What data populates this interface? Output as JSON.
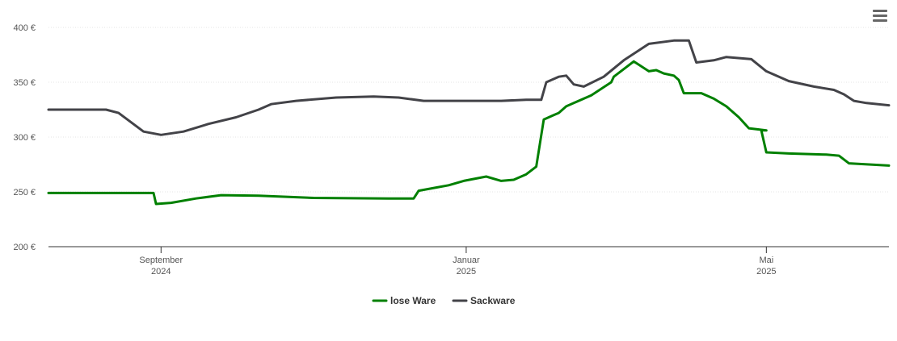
{
  "menu": {
    "icon": "hamburger-menu-icon"
  },
  "chart_data": {
    "type": "line",
    "title": "",
    "xlabel": "",
    "ylabel": "",
    "ylim": [
      200,
      400
    ],
    "yticks": [
      {
        "value": 200,
        "label": "200 €"
      },
      {
        "value": 250,
        "label": "250 €"
      },
      {
        "value": 300,
        "label": "300 €"
      },
      {
        "value": 350,
        "label": "350 €"
      },
      {
        "value": 400,
        "label": "400 €"
      }
    ],
    "xlim": [
      "2024-07-18",
      "2025-06-19"
    ],
    "xticks": [
      {
        "date": "2024-09-01",
        "label": "September",
        "sublabel": "2024"
      },
      {
        "date": "2025-01-01",
        "label": "Januar",
        "sublabel": "2025"
      },
      {
        "date": "2025-05-01",
        "label": "Mai",
        "sublabel": "2025"
      }
    ],
    "grid": true,
    "legend": "bottom-center",
    "series": [
      {
        "name": "lose Ware",
        "color": "#008000",
        "points": [
          [
            "2024-07-18",
            249
          ],
          [
            "2024-08-29",
            249
          ],
          [
            "2024-08-30",
            239
          ],
          [
            "2024-09-05",
            240
          ],
          [
            "2024-09-15",
            244
          ],
          [
            "2024-09-25",
            247
          ],
          [
            "2024-10-10",
            246.5
          ],
          [
            "2024-11-01",
            244.5
          ],
          [
            "2024-12-01",
            244
          ],
          [
            "2024-12-11",
            244
          ],
          [
            "2024-12-13",
            251
          ],
          [
            "2024-12-20",
            254
          ],
          [
            "2024-12-25",
            256
          ],
          [
            "2024-12-31",
            260
          ],
          [
            "2025-01-09",
            264
          ],
          [
            "2025-01-15",
            260
          ],
          [
            "2025-01-20",
            261
          ],
          [
            "2025-01-25",
            266
          ],
          [
            "2025-01-29",
            273
          ],
          [
            "2025-02-01",
            316
          ],
          [
            "2025-02-05",
            320
          ],
          [
            "2025-02-07",
            322
          ],
          [
            "2025-02-10",
            328
          ],
          [
            "2025-02-13",
            331
          ],
          [
            "2025-02-20",
            338
          ],
          [
            "2025-02-28",
            350
          ],
          [
            "2025-03-01",
            355
          ],
          [
            "2025-03-05",
            362
          ],
          [
            "2025-03-09",
            369
          ],
          [
            "2025-03-11",
            366
          ],
          [
            "2025-03-15",
            360
          ],
          [
            "2025-03-18",
            361
          ],
          [
            "2025-03-21",
            358
          ],
          [
            "2025-03-25",
            356
          ],
          [
            "2025-03-27",
            352
          ],
          [
            "2025-03-29",
            340
          ],
          [
            "2025-04-05",
            340
          ],
          [
            "2025-04-10",
            335
          ],
          [
            "2025-04-15",
            328
          ],
          [
            "2025-04-20",
            318
          ],
          [
            "2025-04-24",
            308
          ],
          [
            "2025-05-01",
            306
          ],
          [
            "2025-04-29",
            306
          ],
          [
            "2025-05-01",
            286
          ],
          [
            "2025-05-10",
            285
          ],
          [
            "2025-05-25",
            284
          ],
          [
            "2025-05-30",
            283
          ],
          [
            "2025-06-03",
            276
          ],
          [
            "2025-06-19",
            274
          ]
        ]
      },
      {
        "name": "Sackware",
        "color": "#434348",
        "points": [
          [
            "2024-07-18",
            325
          ],
          [
            "2024-08-10",
            325
          ],
          [
            "2024-08-15",
            322
          ],
          [
            "2024-08-25",
            305
          ],
          [
            "2024-09-01",
            302
          ],
          [
            "2024-09-10",
            305
          ],
          [
            "2024-09-20",
            312
          ],
          [
            "2024-10-01",
            318
          ],
          [
            "2024-10-10",
            325
          ],
          [
            "2024-10-15",
            330
          ],
          [
            "2024-10-25",
            333
          ],
          [
            "2024-11-10",
            336
          ],
          [
            "2024-11-25",
            337
          ],
          [
            "2024-12-05",
            336
          ],
          [
            "2024-12-15",
            333
          ],
          [
            "2025-01-15",
            333
          ],
          [
            "2025-01-25",
            334
          ],
          [
            "2025-01-31",
            334
          ],
          [
            "2025-02-02",
            350
          ],
          [
            "2025-02-07",
            355
          ],
          [
            "2025-02-10",
            356
          ],
          [
            "2025-02-13",
            348
          ],
          [
            "2025-02-17",
            346
          ],
          [
            "2025-02-25",
            355
          ],
          [
            "2025-03-05",
            370
          ],
          [
            "2025-03-15",
            385
          ],
          [
            "2025-03-25",
            388
          ],
          [
            "2025-03-31",
            388
          ],
          [
            "2025-04-03",
            368
          ],
          [
            "2025-04-10",
            370
          ],
          [
            "2025-04-15",
            373
          ],
          [
            "2025-04-25",
            371
          ],
          [
            "2025-05-01",
            360
          ],
          [
            "2025-05-10",
            351
          ],
          [
            "2025-05-20",
            346
          ],
          [
            "2025-05-28",
            343
          ],
          [
            "2025-06-01",
            339
          ],
          [
            "2025-06-05",
            333
          ],
          [
            "2025-06-10",
            331
          ],
          [
            "2025-06-19",
            329
          ]
        ]
      }
    ]
  }
}
